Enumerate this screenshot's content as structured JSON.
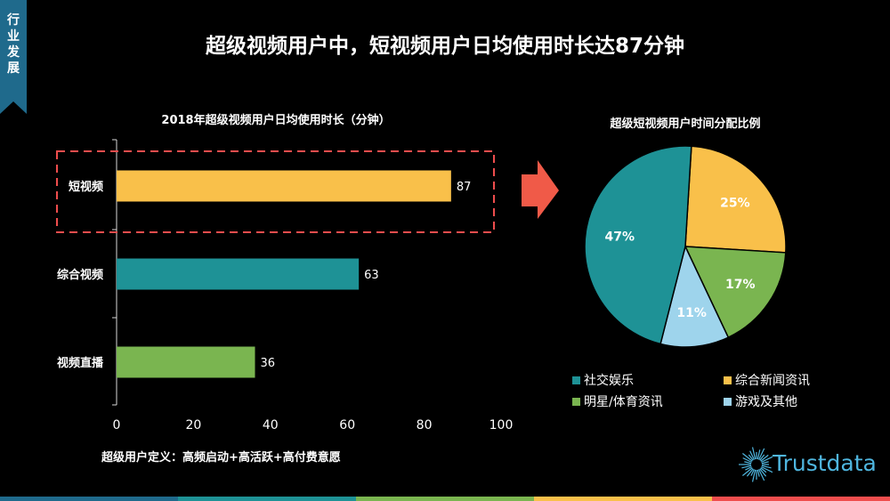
{
  "side_tab": {
    "text": "行业发展"
  },
  "title": "超级视频用户中，短视频用户日均使用时长达87分钟",
  "colors": {
    "short_video": "#f9c04a",
    "integrated_video": "#1e9296",
    "live_video": "#7ab550",
    "games": "#9ed4ec",
    "highlight_box": "#ef4d4d",
    "arrow": "#f05a48",
    "side_tab": "#1f6a8c",
    "logo": "#4fb6df",
    "bottom_bar": [
      "#1f6a8c",
      "#1e9296",
      "#7ab550",
      "#f9c04a",
      "#ef4d4d"
    ]
  },
  "footnote": "超级用户定义：高频启动+高活跃+高付费意愿",
  "logo": {
    "text": "Trustdata",
    "icon": "starburst-logo-icon"
  },
  "highlight_arrow": {
    "icon": "right-arrow-icon"
  },
  "chart_data": [
    {
      "type": "bar",
      "orientation": "horizontal",
      "title": "2018年超级视频用户日均使用时长（分钟）",
      "categories": [
        "短视频",
        "综合视频",
        "视频直播"
      ],
      "values": [
        87,
        63,
        36
      ],
      "value_labels": [
        "87",
        "63",
        "36"
      ],
      "bar_colors": [
        "#f9c04a",
        "#1e9296",
        "#7ab550"
      ],
      "xlim": [
        0,
        100
      ],
      "xticks": [
        0,
        20,
        40,
        60,
        80,
        100
      ],
      "xlabel": "",
      "ylabel": "",
      "grid": false,
      "highlighted_category": "短视频"
    },
    {
      "type": "pie",
      "title": "超级短视频用户时间分配比例",
      "slices": [
        {
          "name": "综合新闻资讯",
          "value": 25,
          "label": "25%",
          "color": "#f9c04a"
        },
        {
          "name": "明星/体育资讯",
          "value": 17,
          "label": "17%",
          "color": "#7ab550"
        },
        {
          "name": "游戏及其他",
          "value": 11,
          "label": "11%",
          "color": "#9ed4ec"
        },
        {
          "name": "社交娱乐",
          "value": 47,
          "label": "47%",
          "color": "#1e9296"
        }
      ],
      "legend": [
        {
          "name": "社交娱乐",
          "color": "#1e9296"
        },
        {
          "name": "综合新闻资讯",
          "color": "#f9c04a"
        },
        {
          "name": "明星/体育资讯",
          "color": "#7ab550"
        },
        {
          "name": "游戏及其他",
          "color": "#9ed4ec"
        }
      ],
      "legend_position": "bottom"
    }
  ]
}
